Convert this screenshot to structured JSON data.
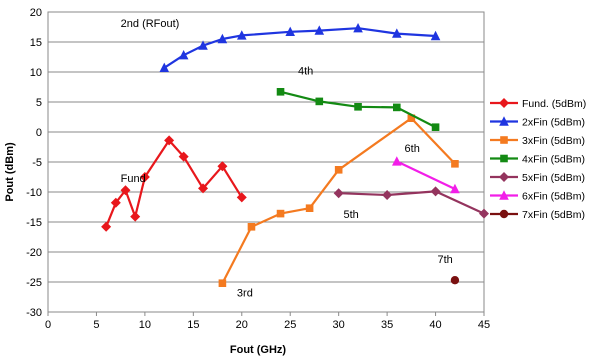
{
  "chart_data": {
    "type": "line",
    "title": "",
    "xlabel": "Fout (GHz)",
    "ylabel": "Pout (dBm)",
    "xlim": [
      0,
      45
    ],
    "ylim": [
      -30,
      20
    ],
    "xticks": [
      0,
      5,
      10,
      15,
      20,
      25,
      30,
      35,
      40,
      45
    ],
    "yticks": [
      -30,
      -25,
      -20,
      -15,
      -10,
      -5,
      0,
      5,
      10,
      15,
      20
    ],
    "grid": "horizontal",
    "legend_position": "right",
    "series": [
      {
        "name": "Fund. (5dBm)",
        "color": "#e8171c",
        "marker": "diamond",
        "x": [
          6,
          7,
          8,
          9,
          10,
          12.5,
          14,
          16,
          18,
          20
        ],
        "y": [
          -15.8,
          -11.8,
          -9.7,
          -14.1,
          -7.5,
          -1.4,
          -4.1,
          -9.4,
          -5.7,
          -10.9
        ]
      },
      {
        "name": "2xFin (5dBm)",
        "color": "#1f35e0",
        "marker": "triangle",
        "x": [
          12,
          14,
          16,
          18,
          20,
          25,
          28,
          32,
          36,
          40
        ],
        "y": [
          10.7,
          12.8,
          14.4,
          15.5,
          16.1,
          16.7,
          16.9,
          17.3,
          16.4,
          16.0
        ]
      },
      {
        "name": "3xFin (5dBm)",
        "color": "#f47a20",
        "marker": "square",
        "x": [
          18,
          21,
          24,
          27,
          30,
          37.5,
          42
        ],
        "y": [
          -25.2,
          -15.8,
          -13.6,
          -12.7,
          -6.3,
          2.3,
          -5.3
        ]
      },
      {
        "name": "4xFin (5dBm)",
        "color": "#138a13",
        "marker": "square",
        "x": [
          24,
          28,
          32,
          36,
          40
        ],
        "y": [
          6.7,
          5.1,
          4.2,
          4.1,
          0.8
        ]
      },
      {
        "name": "5xFin (5dBm)",
        "color": "#94345e",
        "marker": "diamond",
        "x": [
          30,
          35,
          40,
          45
        ],
        "y": [
          -10.2,
          -10.5,
          -9.9,
          -13.6
        ]
      },
      {
        "name": "6xFin (5dBm)",
        "color": "#f21ee8",
        "marker": "triangle",
        "x": [
          36,
          42
        ],
        "y": [
          -4.9,
          -9.5
        ]
      },
      {
        "name": "7xFin (5dBm)",
        "color": "#7a1010",
        "marker": "circle",
        "x": [
          42
        ],
        "y": [
          -24.7
        ]
      }
    ],
    "annotations": [
      {
        "text": "2nd (RFout)",
        "x": 7.5,
        "y": 17.5
      },
      {
        "text": "4th",
        "x": 25.8,
        "y": 9.6
      },
      {
        "text": "6th",
        "x": 36.8,
        "y": -3.3
      },
      {
        "text": "Fund",
        "x": 7.5,
        "y": -8.3
      },
      {
        "text": "5th",
        "x": 30.5,
        "y": -14.3
      },
      {
        "text": "3rd",
        "x": 19.5,
        "y": -27.4
      },
      {
        "text": "7th",
        "x": 40.2,
        "y": -21.8
      }
    ]
  }
}
